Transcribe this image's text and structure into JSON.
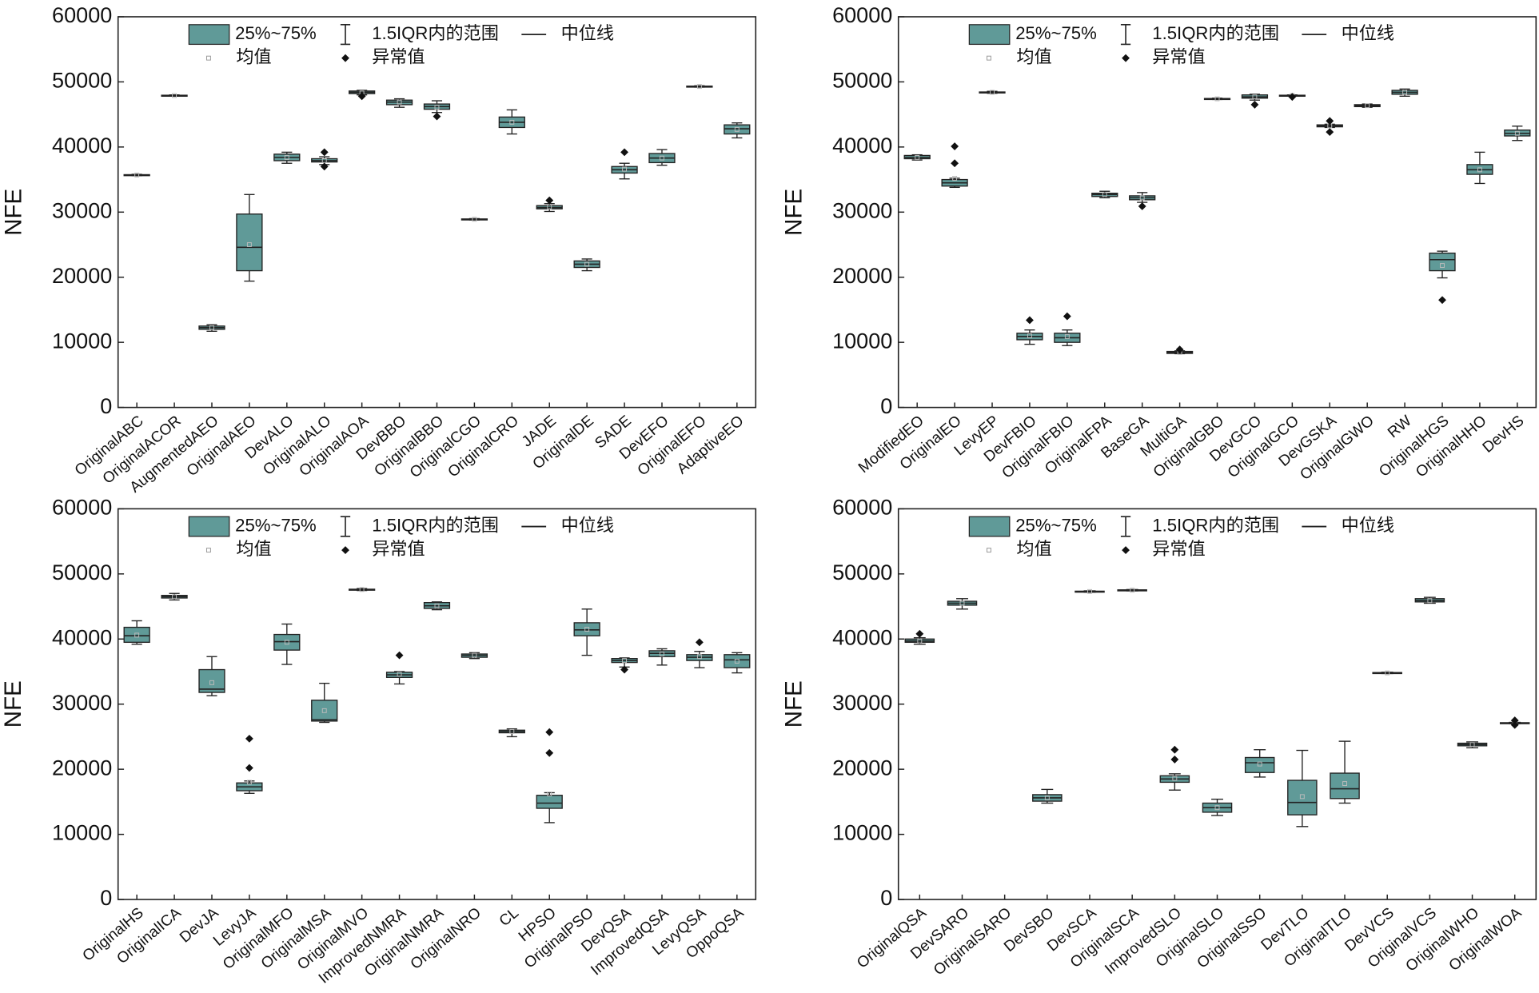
{
  "chart_data": [
    {
      "type": "box",
      "ylabel": "NFE",
      "color": "#609a98",
      "ylim": [
        0,
        60000
      ],
      "yticks": [
        0,
        10000,
        20000,
        30000,
        40000,
        50000,
        60000
      ],
      "legend": {
        "box": "25%~75%",
        "whisker": "1.5IQR内的范围",
        "median": "中位线",
        "mean": "均值",
        "flier": "异常值"
      },
      "categories": [
        "OriginalABC",
        "OriginalACOR",
        "AugmentedAEO",
        "OriginalAEO",
        "DevALO",
        "OriginalALO",
        "OriginalAOA",
        "DevBBO",
        "OriginalBBO",
        "OriginalCGO",
        "OriginalCRO",
        "JADE",
        "OriginalDE",
        "SADE",
        "DevEFO",
        "OriginalEFO",
        "AdaptiveEO"
      ],
      "whislo": [
        35600,
        47800,
        11700,
        19400,
        37500,
        37300,
        48000,
        46100,
        45300,
        28800,
        42000,
        30100,
        21000,
        35100,
        37200,
        49200,
        41400
      ],
      "q1": [
        35650,
        47850,
        12000,
        21000,
        37900,
        37700,
        48200,
        46500,
        45800,
        28850,
        43000,
        30500,
        21500,
        36000,
        37600,
        49250,
        42000
      ],
      "median": [
        35700,
        47900,
        12250,
        24600,
        38400,
        37900,
        48400,
        46900,
        46200,
        28900,
        43800,
        30700,
        22000,
        36500,
        38300,
        49300,
        42800
      ],
      "q3": [
        35750,
        47950,
        12500,
        29700,
        38900,
        38200,
        48600,
        47200,
        46600,
        28950,
        44600,
        31000,
        22500,
        37000,
        39000,
        49350,
        43400
      ],
      "whishi": [
        35800,
        48000,
        12700,
        32700,
        39200,
        38500,
        48700,
        47400,
        47100,
        29000,
        45700,
        31300,
        22800,
        37500,
        39600,
        49400,
        43700
      ],
      "mean": [
        35700,
        47900,
        12250,
        25000,
        38400,
        37900,
        48300,
        46900,
        46100,
        28900,
        43800,
        30800,
        22000,
        36600,
        38300,
        49300,
        42700
      ],
      "fliers": [
        [],
        [],
        [],
        [],
        [],
        [
          39200,
          37000
        ],
        [
          47800
        ],
        [],
        [
          44700
        ],
        [],
        [],
        [
          31800
        ],
        [],
        [
          39200
        ],
        [],
        [],
        []
      ]
    },
    {
      "type": "box",
      "ylabel": "NFE",
      "color": "#609a98",
      "ylim": [
        0,
        60000
      ],
      "yticks": [
        0,
        10000,
        20000,
        30000,
        40000,
        50000,
        60000
      ],
      "legend": {
        "box": "25%~75%",
        "whisker": "1.5IQR内的范围",
        "median": "中位线",
        "mean": "均值",
        "flier": "异常值"
      },
      "categories": [
        "ModifiedEO",
        "OriginalEO",
        "LevyEP",
        "DevFBIO",
        "OriginalFBIO",
        "OriginalFPA",
        "BaseGA",
        "MultiGA",
        "OriginalGBO",
        "DevGCO",
        "OriginalGCO",
        "DevGSKA",
        "OriginalGWO",
        "RW",
        "OriginalHGS",
        "OriginalHHO",
        "DevHS"
      ],
      "whislo": [
        38000,
        33800,
        48250,
        9700,
        9500,
        32200,
        31500,
        8250,
        47300,
        47200,
        47800,
        43000,
        46100,
        47800,
        19900,
        34400,
        41000
      ],
      "q1": [
        38200,
        34000,
        48350,
        10400,
        10000,
        32400,
        31900,
        8300,
        47350,
        47500,
        47850,
        43100,
        46200,
        48100,
        21000,
        35800,
        41700
      ],
      "median": [
        38400,
        34500,
        48400,
        10900,
        10700,
        32700,
        32200,
        8450,
        47400,
        47700,
        47900,
        43250,
        46350,
        48400,
        22700,
        36500,
        42100
      ],
      "q3": [
        38700,
        35000,
        48450,
        11400,
        11400,
        32900,
        32500,
        8600,
        47450,
        48000,
        47950,
        43400,
        46500,
        48700,
        23700,
        37300,
        42600
      ],
      "whishi": [
        38800,
        35200,
        48550,
        11900,
        11900,
        33200,
        33000,
        8700,
        47500,
        48100,
        48000,
        43500,
        46600,
        48900,
        24000,
        39200,
        43200
      ],
      "mean": [
        38400,
        35200,
        48400,
        11000,
        10900,
        32700,
        32200,
        8450,
        47400,
        47700,
        47900,
        43250,
        46350,
        48400,
        21800,
        36500,
        42100
      ],
      "fliers": [
        [],
        [
          40100,
          37500
        ],
        [],
        [
          13400
        ],
        [
          14000
        ],
        [],
        [
          30900
        ],
        [
          8900
        ],
        [],
        [
          46500
        ],
        [
          47700
        ],
        [
          44000,
          42300
        ],
        [],
        [],
        [
          16500
        ],
        [],
        []
      ]
    },
    {
      "type": "box",
      "ylabel": "NFE",
      "color": "#609a98",
      "ylim": [
        0,
        60000
      ],
      "yticks": [
        0,
        10000,
        20000,
        30000,
        40000,
        50000,
        60000
      ],
      "legend": {
        "box": "25%~75%",
        "whisker": "1.5IQR内的范围",
        "median": "中位线",
        "mean": "均值",
        "flier": "异常值"
      },
      "categories": [
        "OriginalHS",
        "OriginalICA",
        "DevJA",
        "LevyJA",
        "OriginalMFO",
        "OriginalMSA",
        "OriginalMVO",
        "ImprovedNMRA",
        "OriginalNMRA",
        "OriginalNRO",
        "CL",
        "HPSO",
        "OriginalPSO",
        "DevQSA",
        "ImprovedQSA",
        "LevyQSA",
        "OppoQSA"
      ],
      "whislo": [
        39200,
        46000,
        31300,
        16300,
        36100,
        27200,
        47450,
        33100,
        44500,
        37000,
        25000,
        11800,
        37500,
        35700,
        36000,
        35600,
        34800
      ],
      "q1": [
        39500,
        46300,
        31800,
        16700,
        38300,
        27400,
        47550,
        34100,
        44700,
        37200,
        25600,
        14000,
        40500,
        36400,
        37300,
        36700,
        35600
      ],
      "median": [
        40500,
        46500,
        32300,
        17300,
        39600,
        27600,
        47600,
        34500,
        45100,
        37500,
        25800,
        14800,
        41400,
        36700,
        37800,
        37200,
        36800
      ],
      "q3": [
        41800,
        46700,
        35300,
        17900,
        40700,
        30600,
        47650,
        34900,
        45600,
        37700,
        26000,
        16000,
        42500,
        37000,
        38200,
        37600,
        37600
      ],
      "whishi": [
        42800,
        47000,
        37300,
        18200,
        42300,
        33200,
        47750,
        35000,
        45700,
        37900,
        26200,
        16400,
        44600,
        37100,
        38500,
        38100,
        37900
      ],
      "mean": [
        40600,
        46500,
        33300,
        18000,
        39500,
        29000,
        47600,
        34600,
        45100,
        37500,
        25800,
        16200,
        41500,
        36700,
        37700,
        37300,
        36600
      ],
      "fliers": [
        [],
        [],
        [],
        [
          24700,
          20200
        ],
        [],
        [],
        [],
        [
          37500
        ],
        [],
        [],
        [],
        [
          25700,
          22500
        ],
        [],
        [
          35300
        ],
        [],
        [
          39500
        ],
        []
      ]
    },
    {
      "type": "box",
      "ylabel": "NFE",
      "color": "#609a98",
      "ylim": [
        0,
        60000
      ],
      "yticks": [
        0,
        10000,
        20000,
        30000,
        40000,
        50000,
        60000
      ],
      "legend": {
        "box": "25%~75%",
        "whisker": "1.5IQR内的范围",
        "median": "中位线",
        "mean": "均值",
        "flier": "异常值"
      },
      "categories": [
        "OriginalQSA",
        "DevSARO",
        "OriginalSARO",
        "DevSBO",
        "DevSCA",
        "OriginalSCA",
        "ImprovedSLO",
        "OriginalSLO",
        "OriginalSSO",
        "DevTLO",
        "OriginalTLO",
        "DevVCS",
        "OriginalVCS",
        "OriginalWHO",
        "OriginalWOA"
      ],
      "whislo": [
        39200,
        44600,
        null,
        14800,
        47200,
        47400,
        16800,
        12900,
        18800,
        11200,
        14800,
        34700,
        45500,
        23300,
        27000
      ],
      "q1": [
        39500,
        45200,
        null,
        15100,
        47250,
        47450,
        18000,
        13400,
        19500,
        13000,
        15500,
        34750,
        45700,
        23600,
        27050
      ],
      "median": [
        39700,
        45500,
        null,
        15600,
        47300,
        47500,
        18500,
        14100,
        21000,
        14900,
        17000,
        34800,
        45900,
        23800,
        27100
      ],
      "q3": [
        40000,
        45800,
        null,
        16100,
        47350,
        47550,
        19000,
        14800,
        21800,
        18300,
        19400,
        34850,
        46200,
        24000,
        27150
      ],
      "whishi": [
        40200,
        46200,
        null,
        16900,
        47400,
        47600,
        19300,
        15400,
        23000,
        22900,
        24300,
        34900,
        46400,
        24200,
        27200
      ],
      "mean": [
        39700,
        45500,
        null,
        15600,
        47300,
        47500,
        18600,
        14100,
        20800,
        15800,
        17800,
        34800,
        45900,
        23800,
        27100
      ],
      "fliers": [
        [
          40800
        ],
        [],
        [],
        [],
        [],
        [],
        [
          23000,
          21500
        ],
        [],
        [],
        [],
        [],
        [],
        [],
        [],
        [
          27500,
          26800
        ]
      ]
    }
  ]
}
